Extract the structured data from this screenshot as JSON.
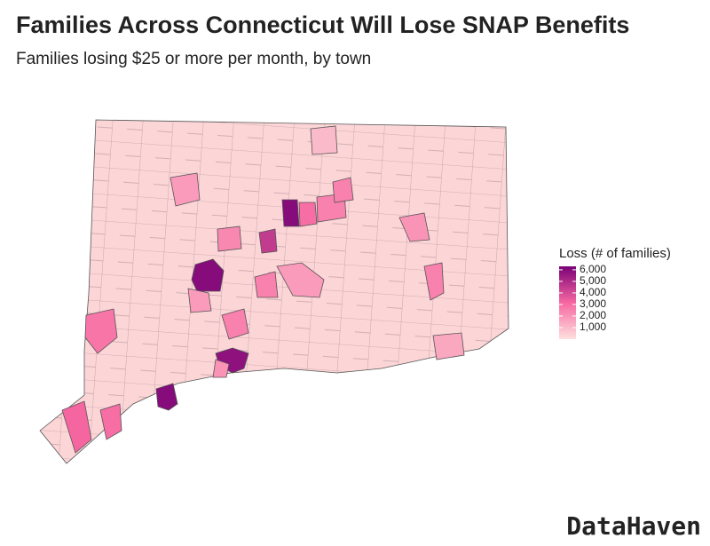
{
  "title": "Families Across Connecticut Will Lose SNAP Benefits",
  "subtitle": "Families losing $25 or more per month, by town",
  "map": {
    "legend_title": "Loss (# of families)",
    "colorlim": [
      0,
      6300
    ],
    "colors": [
      "#fde0dd",
      "#f768a1",
      "#7a0177"
    ],
    "legend_ticks": [
      {
        "value": 1000,
        "label": "1,000"
      },
      {
        "value": 2000,
        "label": "2,000"
      },
      {
        "value": 3000,
        "label": "3,000"
      },
      {
        "value": 4000,
        "label": "4,000"
      },
      {
        "value": 5000,
        "label": "5,000"
      },
      {
        "value": 6000,
        "label": "6,000"
      }
    ],
    "base_value": 300,
    "towns": [
      6000,
      3000,
      2500,
      4500,
      2300,
      6000,
      2500,
      1800,
      5800,
      2000,
      6000,
      3000,
      3200,
      2800,
      1800,
      2500,
      1500,
      2000,
      1000,
      2500,
      1800,
      2500
    ]
  },
  "brand": "DataHaven"
}
